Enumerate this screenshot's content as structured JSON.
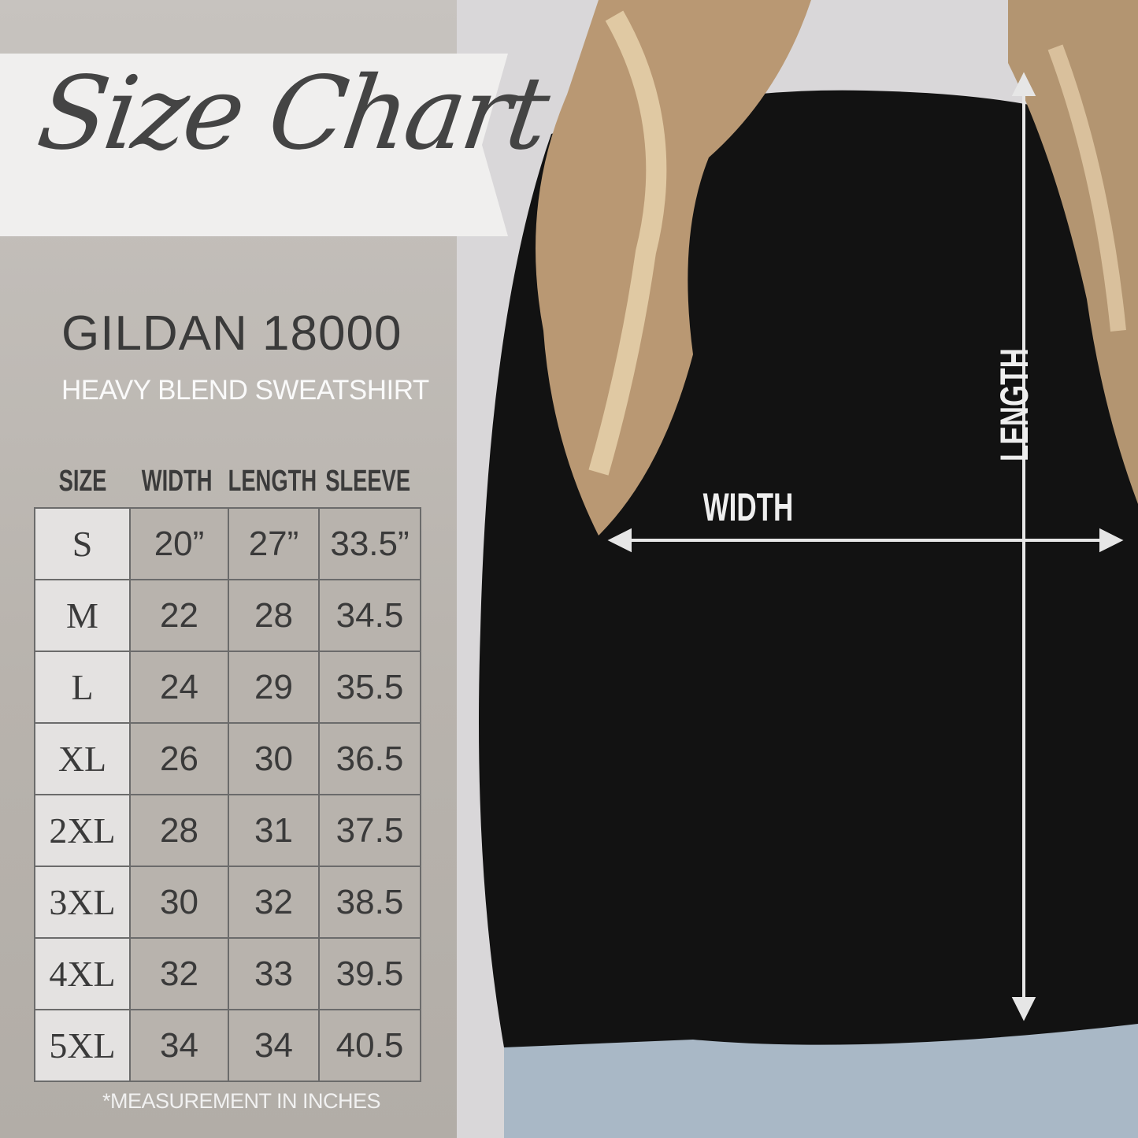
{
  "title": "Size Chart",
  "brand": "GILDAN 18000",
  "subtitle": "HEAVY BLEND SWEATSHIRT",
  "table": {
    "headers": [
      "SIZE",
      "WIDTH",
      "LENGTH",
      "SLEEVE"
    ],
    "rows": [
      [
        "S",
        "20”",
        "27”",
        "33.5”"
      ],
      [
        "M",
        "22",
        "28",
        "34.5"
      ],
      [
        "L",
        "24",
        "29",
        "35.5"
      ],
      [
        "XL",
        "26",
        "30",
        "36.5"
      ],
      [
        "2XL",
        "28",
        "31",
        "37.5"
      ],
      [
        "3XL",
        "30",
        "32",
        "38.5"
      ],
      [
        "4XL",
        "32",
        "33",
        "39.5"
      ],
      [
        "5XL",
        "34",
        "34",
        "40.5"
      ]
    ]
  },
  "note": "*MEASUREMENT IN INCHES",
  "diagram": {
    "width_label": "WIDTH",
    "length_label": "LENGTH"
  },
  "colors": {
    "panel": "#b8b3ad",
    "shirt": "#111111",
    "text": "#3a3a3a"
  }
}
